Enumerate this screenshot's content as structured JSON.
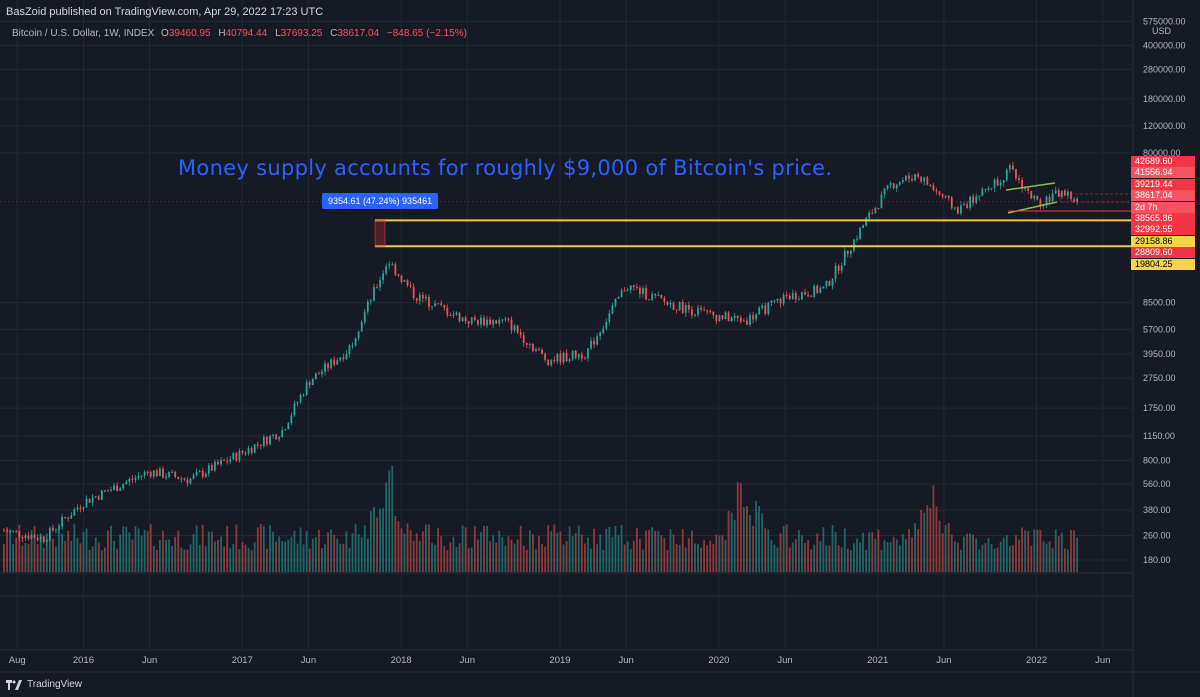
{
  "header": {
    "publisher_text": "BasZoid published on TradingView.com, Apr 29, 2022 17:23 UTC",
    "symbol": "Bitcoin / U.S. Dollar, 1W, INDEX",
    "open_label": "O",
    "open": "39460.95",
    "high_label": "H",
    "high": "40794.44",
    "low_label": "L",
    "low": "37693.25",
    "close_label": "C",
    "close": "38617.04",
    "change": "−848.65 (−2.15%)"
  },
  "annotation": {
    "headline": "Money supply accounts for roughly $9,000 of Bitcoin's price.",
    "measure_label": "9354.61 (47.24%) 935461"
  },
  "footer": {
    "brand": "TradingView"
  },
  "colors": {
    "background": "#161a25",
    "up": "#26a69a",
    "down": "#ef5350",
    "headline": "#2962ff",
    "support_line": "#f0c94e",
    "channel": "#7ec24a",
    "grid": "#242833"
  },
  "chart_data": {
    "type": "candlestick",
    "title": "Bitcoin / U.S. Dollar, 1W, INDEX",
    "yscale": "log",
    "y_unit": "USD",
    "grid": true,
    "y_tick_labels": [
      "575000.00",
      "400000.00",
      "280000.00",
      "180000.00",
      "120000.00",
      "80000.00",
      "8500.00",
      "5700.00",
      "3950.00",
      "2750.00",
      "1750.00",
      "1150.00",
      "800.00",
      "560.00",
      "380.00",
      "260.00",
      "180.00"
    ],
    "price_tags": [
      {
        "label": "42689.60",
        "color": "#f23645"
      },
      {
        "label": "41556.94",
        "color": "#f7525f"
      },
      {
        "label": "39219.44",
        "color": "#f23645"
      },
      {
        "label": "38617.04",
        "color": "#f7525f"
      },
      {
        "label": "2d 7h",
        "color": "#f7525f"
      },
      {
        "label": "38565.86",
        "color": "#f23645"
      },
      {
        "label": "32992.55",
        "color": "#f23645"
      },
      {
        "label": "29158.86",
        "color": "#f5d547"
      },
      {
        "label": "28809.60",
        "color": "#f23645"
      },
      {
        "label": "19804.25",
        "color": "#f5d547"
      }
    ],
    "x_tick_labels": [
      "Aug",
      "2016",
      "Jun",
      "2017",
      "Jun",
      "2018",
      "Jun",
      "2019",
      "Jun",
      "2020",
      "Jun",
      "2021",
      "Jun",
      "2022",
      "Jun"
    ],
    "x_tick_dates": [
      "2015-08",
      "2016-01",
      "2016-06",
      "2017-01",
      "2017-06",
      "2018-01",
      "2018-06",
      "2019-01",
      "2019-06",
      "2020-01",
      "2020-06",
      "2021-01",
      "2021-06",
      "2022-01",
      "2022-06"
    ],
    "price_path": {
      "dates": [
        "2015-07",
        "2015-10",
        "2016-01",
        "2016-06",
        "2016-09",
        "2017-01",
        "2017-04",
        "2017-06",
        "2017-09",
        "2017-12",
        "2018-02",
        "2018-06",
        "2018-09",
        "2018-12",
        "2019-03",
        "2019-06",
        "2019-09",
        "2019-12",
        "2020-03",
        "2020-06",
        "2020-09",
        "2020-12",
        "2021-02",
        "2021-04",
        "2021-07",
        "2021-09",
        "2021-11",
        "2022-01",
        "2022-03",
        "2022-04"
      ],
      "closes": [
        280,
        250,
        430,
        680,
        600,
        900,
        1250,
        2600,
        4200,
        16000,
        9500,
        6500,
        6400,
        3600,
        4000,
        11000,
        8500,
        7200,
        6500,
        9300,
        10500,
        28000,
        50000,
        58000,
        34000,
        45000,
        62000,
        38000,
        45000,
        38617
      ]
    },
    "horizontal_levels": [
      {
        "value": 29158.86,
        "color": "#f0c94e"
      },
      {
        "value": 19804.25,
        "color": "#f0c94e"
      }
    ],
    "measure": {
      "low": 19804.25,
      "high": 29158.86,
      "label": "9354.61 (47.24%) 935461"
    },
    "volume": {
      "shown": true,
      "relative_peaks": [
        {
          "date": "2017-12",
          "level": 1.0
        },
        {
          "date": "2020-03",
          "level": 0.95
        },
        {
          "date": "2021-05",
          "level": 0.8
        }
      ]
    }
  }
}
